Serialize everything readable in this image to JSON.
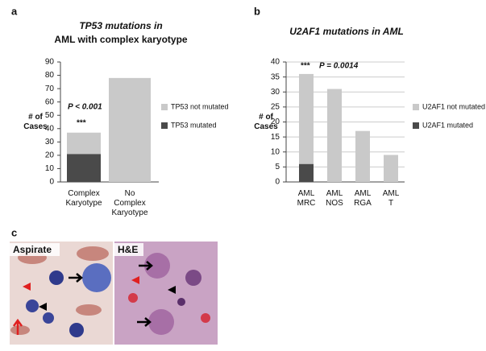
{
  "panels": {
    "a": "a",
    "b": "b",
    "c": "c"
  },
  "chart_data": [
    {
      "type": "bar",
      "stacked": true,
      "grid": false,
      "title": [
        "TP53 mutations in",
        "AML with complex karyotype"
      ],
      "ylabel": "# of Cases",
      "categories": [
        "Complex Karyotype",
        "No Complex Karyotype"
      ],
      "series": [
        {
          "name": "TP53 mutated",
          "color": "#4a4a4a",
          "values": [
            21,
            0
          ]
        },
        {
          "name": "TP53 not mutated",
          "color": "#c9c9c9",
          "values": [
            16,
            78
          ]
        }
      ],
      "ylim": [
        0,
        90
      ],
      "yticks": [
        0,
        10,
        20,
        30,
        40,
        50,
        60,
        70,
        80,
        90
      ],
      "annotations": [
        "P < 0.001",
        "***"
      ]
    },
    {
      "type": "bar",
      "stacked": true,
      "grid": true,
      "title": [
        "U2AF1 mutations in AML"
      ],
      "ylabel": "# of Cases",
      "categories": [
        "AML MRC",
        "AML NOS",
        "AML RGA",
        "AML T"
      ],
      "series": [
        {
          "name": "U2AF1 mutated",
          "color": "#4a4a4a",
          "values": [
            6,
            0,
            0,
            0
          ]
        },
        {
          "name": "U2AF1 not mutated",
          "color": "#c9c9c9",
          "values": [
            30,
            31,
            17,
            9
          ]
        }
      ],
      "ylim": [
        0,
        40
      ],
      "yticks": [
        0,
        5,
        10,
        15,
        20,
        25,
        30,
        35,
        40
      ],
      "annotations": [
        "***",
        "P = 0.0014"
      ]
    }
  ],
  "images": {
    "aspirate": "Aspirate",
    "he": "H&E"
  }
}
